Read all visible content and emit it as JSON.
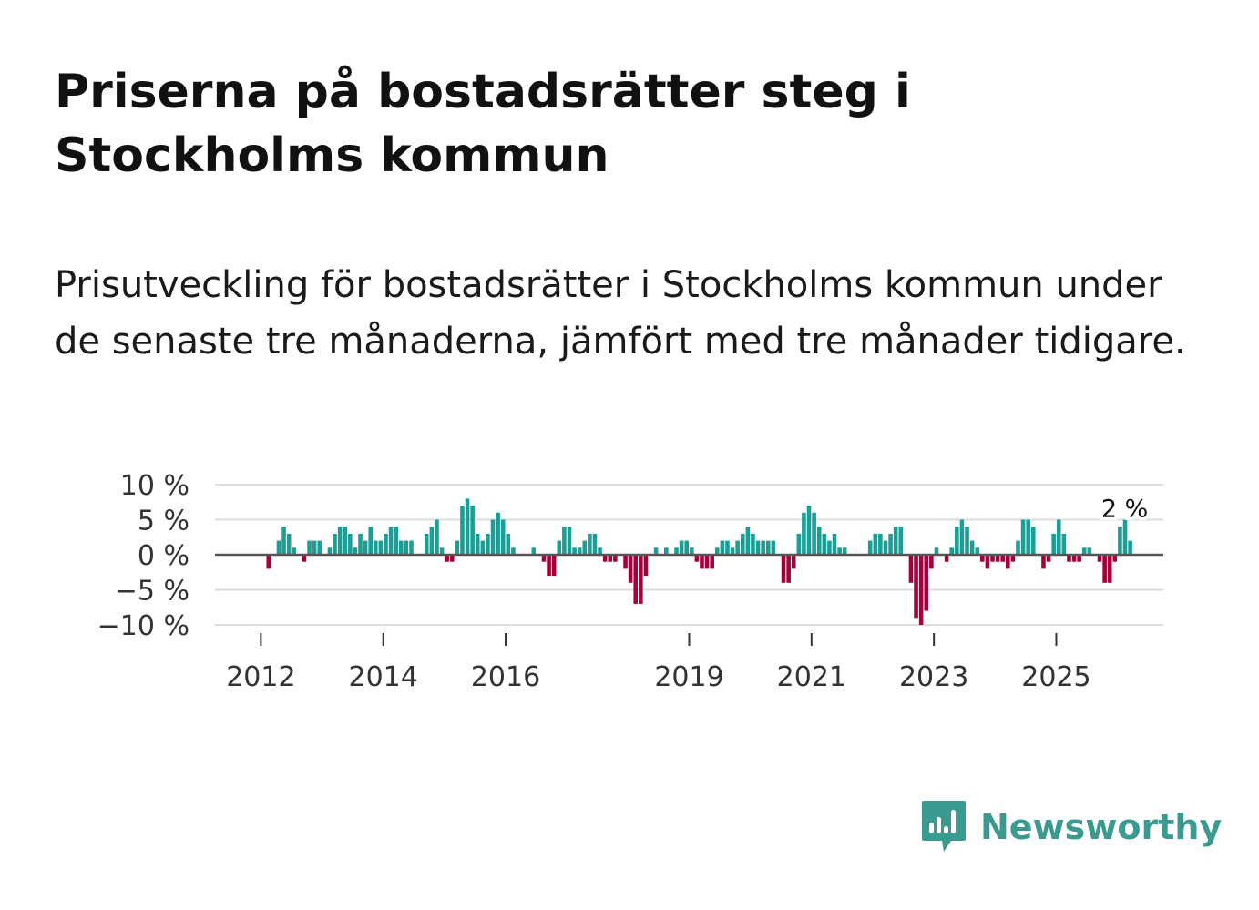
{
  "title": "Priserna på bostadsrätter steg i Stockholms kommun",
  "subtitle": "Prisutveckling för bostadsrätter i Stockholms kommun under de senaste tre månaderna, jämfört med tre månader tidigare.",
  "brand": {
    "name": "Newsworthy",
    "color": "#3a9a8f",
    "icon": "newsworthy-logo-icon"
  },
  "colors": {
    "positive": "#1a9e96",
    "negative": "#a3003c",
    "grid": "#dddddd",
    "zero": "#555555"
  },
  "chart_data": {
    "type": "bar",
    "title": "Priserna på bostadsrätter steg i Stockholms kommun",
    "xlabel": "",
    "ylabel": "",
    "x_start": {
      "year": 2011,
      "month": 6
    },
    "x_range": [
      2011.25,
      2026.75
    ],
    "ylim": [
      -10,
      10
    ],
    "y_ticks": [
      10,
      5,
      0,
      -5,
      -10
    ],
    "y_tick_labels": [
      "10 %",
      "5 %",
      "0 %",
      "−5 %",
      "−10 %"
    ],
    "x_ticks": [
      2012,
      2014,
      2016,
      2019,
      2021,
      2023,
      2025
    ],
    "x_tick_labels": [
      "2012",
      "2014",
      "2016",
      "2019",
      "2021",
      "2023",
      "2025"
    ],
    "values": [
      0,
      0,
      0,
      0,
      0,
      0,
      0,
      0,
      -2,
      0,
      2,
      4,
      3,
      1,
      0,
      -1,
      2,
      2,
      2,
      0,
      1,
      3,
      4,
      4,
      3,
      1,
      3,
      2,
      4,
      2,
      2,
      3,
      4,
      4,
      2,
      2,
      2,
      0,
      0,
      3,
      4,
      5,
      1,
      -1,
      -1,
      2,
      7,
      8,
      7,
      3,
      2,
      3,
      5,
      6,
      5,
      3,
      1,
      0,
      0,
      0,
      1,
      0,
      -1,
      -3,
      -3,
      2,
      4,
      4,
      1,
      1,
      2,
      3,
      3,
      1,
      -1,
      -1,
      -1,
      0,
      -2,
      -4,
      -7,
      -7,
      -3,
      0,
      1,
      0,
      1,
      0,
      1,
      2,
      2,
      1,
      -1,
      -2,
      -2,
      -2,
      1,
      2,
      2,
      1,
      2,
      3,
      4,
      3,
      2,
      2,
      2,
      2,
      0,
      -4,
      -4,
      -2,
      3,
      6,
      7,
      6,
      4,
      3,
      2,
      3,
      1,
      1,
      0,
      0,
      0,
      0,
      2,
      3,
      3,
      2,
      3,
      4,
      4,
      0,
      -4,
      -9,
      -10,
      -8,
      -2,
      1,
      0,
      -1,
      1,
      4,
      5,
      4,
      2,
      1,
      -1,
      -2,
      -1,
      -1,
      -1,
      -2,
      -1,
      2,
      5,
      5,
      4,
      0,
      -2,
      -1,
      3,
      5,
      3,
      -1,
      -1,
      -1,
      1,
      1,
      0,
      -1,
      -4,
      -4,
      -1,
      4,
      5,
      2
    ],
    "annotation": {
      "label": "2 %",
      "value": 2
    }
  }
}
